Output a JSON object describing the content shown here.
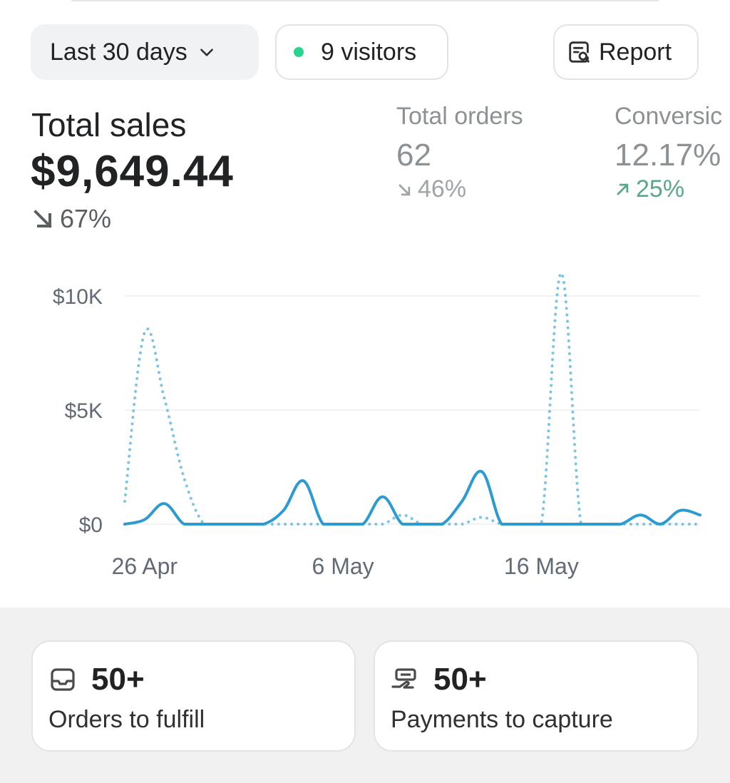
{
  "toolbar": {
    "date_range": "Last 30 days",
    "visitors": "9 visitors",
    "report": "Report"
  },
  "metrics": {
    "total_sales": {
      "title": "Total sales",
      "value": "$9,649.44",
      "delta": "67%",
      "direction": "down"
    },
    "total_orders": {
      "title": "Total orders",
      "value": "62",
      "delta": "46%",
      "direction": "down"
    },
    "conversion": {
      "title": "Conversic",
      "value": "12.17%",
      "delta": "25%",
      "direction": "up"
    }
  },
  "chart_data": {
    "type": "line",
    "y_ticks": [
      "$10K",
      "$5K",
      "$0"
    ],
    "ylim": [
      0,
      10000
    ],
    "x_ticks": [
      "26 Apr",
      "6 May",
      "16 May"
    ],
    "x": [
      "25 Apr",
      "26 Apr",
      "27 Apr",
      "28 Apr",
      "29 Apr",
      "30 Apr",
      "1 May",
      "2 May",
      "3 May",
      "4 May",
      "5 May",
      "6 May",
      "7 May",
      "8 May",
      "9 May",
      "10 May",
      "11 May",
      "12 May",
      "13 May",
      "14 May",
      "15 May",
      "16 May",
      "17 May",
      "18 May",
      "19 May",
      "20 May",
      "21 May",
      "22 May",
      "23 May",
      "24 May"
    ],
    "series": [
      {
        "style": "solid",
        "color": "#2b9bd1",
        "values": [
          0,
          200,
          900,
          0,
          0,
          0,
          0,
          0,
          600,
          1900,
          0,
          0,
          0,
          1200,
          0,
          0,
          0,
          1000,
          2300,
          0,
          0,
          0,
          0,
          0,
          0,
          0,
          400,
          0,
          600,
          400
        ]
      },
      {
        "style": "dotted",
        "color": "#7cc4e0",
        "values": [
          1000,
          8400,
          5500,
          2000,
          0,
          0,
          0,
          0,
          0,
          0,
          0,
          0,
          0,
          0,
          400,
          0,
          0,
          0,
          300,
          0,
          0,
          0,
          11000,
          0,
          0,
          0,
          0,
          0,
          0,
          0
        ]
      }
    ],
    "grid": true
  },
  "cards": [
    {
      "count": "50+",
      "label": "Orders to fulfill",
      "icon": "inbox-icon"
    },
    {
      "count": "50+",
      "label": "Payments to capture",
      "icon": "cash-hand-icon"
    }
  ],
  "colors": {
    "positive": "#5aa889",
    "muted": "#8c9196",
    "accent": "#2b9bd1",
    "live_dot": "#29d390"
  }
}
